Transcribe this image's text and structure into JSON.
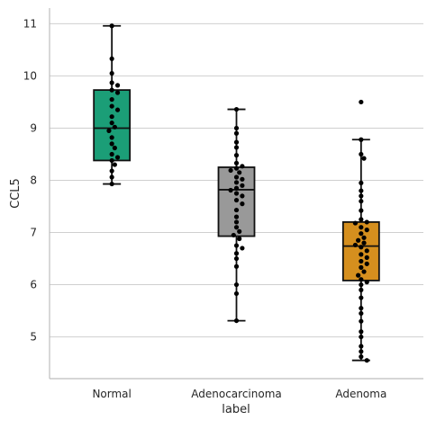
{
  "chart_data": {
    "type": "box",
    "title": "",
    "xlabel": "label",
    "ylabel": "CCL5",
    "categories": [
      "Normal",
      "Adenocarcinoma",
      "Adenoma"
    ],
    "yticks": [
      5,
      6,
      7,
      8,
      9,
      10,
      11
    ],
    "ylim": [
      4.2,
      11.3
    ],
    "grid": "horizontal",
    "boxes": [
      {
        "category": "Normal",
        "color": "#1b9e77",
        "whisker_low": 7.93,
        "q1": 8.38,
        "median": 9.0,
        "q3": 9.73,
        "whisker_high": 10.96,
        "points": [
          10.96,
          10.33,
          10.05,
          9.87,
          9.82,
          9.73,
          9.68,
          9.55,
          9.42,
          9.35,
          9.22,
          9.1,
          9.02,
          8.95,
          8.82,
          8.7,
          8.62,
          8.5,
          8.44,
          8.38,
          8.3,
          8.18,
          8.06,
          7.93
        ]
      },
      {
        "category": "Adenocarcinoma",
        "color": "#999999",
        "whisker_low": 5.31,
        "q1": 6.93,
        "median": 7.82,
        "q3": 8.25,
        "whisker_high": 9.36,
        "points": [
          9.36,
          9.0,
          8.9,
          8.73,
          8.63,
          8.48,
          8.33,
          8.27,
          8.23,
          8.19,
          8.15,
          8.06,
          8.02,
          7.96,
          7.9,
          7.85,
          7.81,
          7.75,
          7.7,
          7.62,
          7.55,
          7.43,
          7.3,
          7.2,
          7.1,
          7.02,
          6.95,
          6.88,
          6.75,
          6.7,
          6.6,
          6.5,
          6.35,
          6.0,
          5.83,
          5.31
        ]
      },
      {
        "category": "Adenoma",
        "color": "#d58f1e",
        "whisker_low": 4.55,
        "q1": 6.08,
        "median": 6.74,
        "q3": 7.2,
        "whisker_high": 8.78,
        "points": [
          9.5,
          8.78,
          8.5,
          8.42,
          7.95,
          7.8,
          7.7,
          7.6,
          7.42,
          7.25,
          7.2,
          7.18,
          7.1,
          7.05,
          6.98,
          6.9,
          6.85,
          6.8,
          6.76,
          6.72,
          6.65,
          6.58,
          6.52,
          6.45,
          6.4,
          6.33,
          6.25,
          6.18,
          6.1,
          6.05,
          6.0,
          5.9,
          5.75,
          5.55,
          5.45,
          5.3,
          5.1,
          5.0,
          4.82,
          4.72,
          4.62,
          4.55
        ]
      }
    ]
  }
}
